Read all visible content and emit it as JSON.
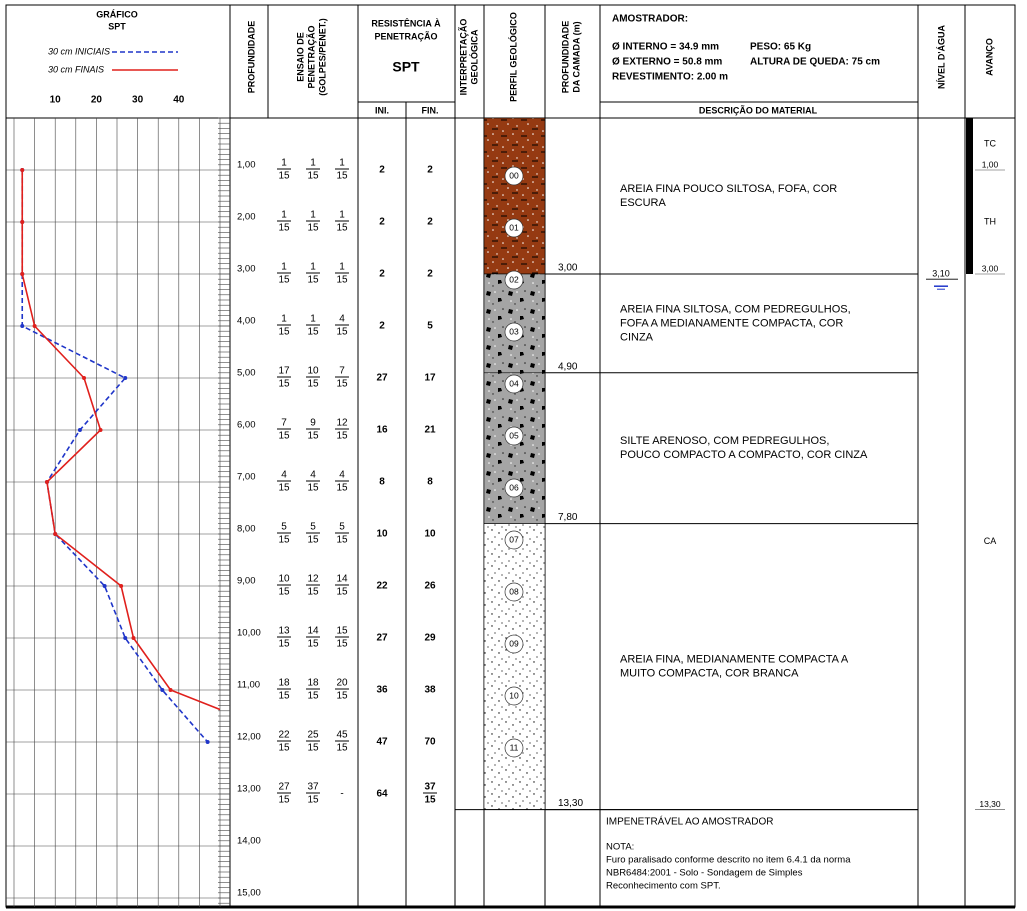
{
  "header": {
    "graph_title": [
      "GRÁFICO",
      "SPT"
    ],
    "depth": "PROFUNDIDADE",
    "penetration_test": [
      "ENSAIO DE",
      "PENETRAÇÃO",
      "(GOLPES/PENET.)"
    ],
    "resistance": [
      "RESISTÊNCIA À",
      "PENETRAÇÃO"
    ],
    "spt": "SPT",
    "ini": "INI.",
    "fin": "FIN.",
    "interpretation": [
      "INTERPRETAÇÃO",
      "GEOLÓGICA"
    ],
    "profile": "PERFIL GEOLÓGICO",
    "layer_depth": [
      "PROFUNDIDADE",
      "DA CAMADA (m)"
    ],
    "sampler_title": "AMOSTRADOR:",
    "sampler": [
      "Ø INTERNO = 34.9 mm",
      "PESO: 65 Kg",
      "Ø EXTERNO = 50.8 mm",
      "ALTURA DE QUEDA: 75 cm",
      "REVESTIMENTO: 2.00 m"
    ],
    "description": "DESCRIÇÃO DO MATERIAL",
    "water_level": "NÍVEL D'ÁGUA",
    "advance": "AVANÇO"
  },
  "graph": {
    "legend": [
      {
        "label": "30 cm INICIAIS",
        "color": "#1f35c9",
        "dashed": true
      },
      {
        "label": "30 cm FINAIS",
        "color": "#e0201c",
        "dashed": false
      }
    ],
    "xlim": [
      0,
      50
    ],
    "xticks": [
      10,
      20,
      30,
      40
    ]
  },
  "depth_labels": [
    "1,00",
    "2,00",
    "3,00",
    "4,00",
    "5,00",
    "6,00",
    "7,00",
    "8,00",
    "9,00",
    "10,00",
    "11,00",
    "12,00",
    "13,00",
    "14,00",
    "15,00"
  ],
  "rows": [
    {
      "blows": [
        [
          1,
          15
        ],
        [
          1,
          15
        ],
        [
          1,
          15
        ]
      ],
      "ini": 2,
      "fin": 2
    },
    {
      "blows": [
        [
          1,
          15
        ],
        [
          1,
          15
        ],
        [
          1,
          15
        ]
      ],
      "ini": 2,
      "fin": 2
    },
    {
      "blows": [
        [
          1,
          15
        ],
        [
          1,
          15
        ],
        [
          1,
          15
        ]
      ],
      "ini": 2,
      "fin": 2
    },
    {
      "blows": [
        [
          1,
          15
        ],
        [
          1,
          15
        ],
        [
          4,
          15
        ]
      ],
      "ini": 2,
      "fin": 5
    },
    {
      "blows": [
        [
          17,
          15
        ],
        [
          10,
          15
        ],
        [
          7,
          15
        ]
      ],
      "ini": 27,
      "fin": 17
    },
    {
      "blows": [
        [
          7,
          15
        ],
        [
          9,
          15
        ],
        [
          12,
          15
        ]
      ],
      "ini": 16,
      "fin": 21
    },
    {
      "blows": [
        [
          4,
          15
        ],
        [
          4,
          15
        ],
        [
          4,
          15
        ]
      ],
      "ini": 8,
      "fin": 8
    },
    {
      "blows": [
        [
          5,
          15
        ],
        [
          5,
          15
        ],
        [
          5,
          15
        ]
      ],
      "ini": 10,
      "fin": 10
    },
    {
      "blows": [
        [
          10,
          15
        ],
        [
          12,
          15
        ],
        [
          14,
          15
        ]
      ],
      "ini": 22,
      "fin": 26
    },
    {
      "blows": [
        [
          13,
          15
        ],
        [
          14,
          15
        ],
        [
          15,
          15
        ]
      ],
      "ini": 27,
      "fin": 29
    },
    {
      "blows": [
        [
          18,
          15
        ],
        [
          18,
          15
        ],
        [
          20,
          15
        ]
      ],
      "ini": 36,
      "fin": 38
    },
    {
      "blows": [
        [
          22,
          15
        ],
        [
          25,
          15
        ],
        [
          45,
          15
        ]
      ],
      "ini": 47,
      "fin": 70
    },
    {
      "blows": [
        [
          27,
          15
        ],
        [
          37,
          15
        ],
        "-"
      ],
      "ini": 64,
      "fin": [
        37,
        15
      ]
    }
  ],
  "samples": [
    "00",
    "01",
    "02",
    "03",
    "04",
    "05",
    "06",
    "07",
    "08",
    "09",
    "10",
    "11"
  ],
  "layers": [
    {
      "bottom": "3,00",
      "pattern": "brown",
      "description": [
        "AREIA FINA POUCO SILTOSA, FOFA, COR",
        "ESCURA"
      ]
    },
    {
      "bottom": "4,90",
      "pattern": "gravel",
      "description": [
        "AREIA FINA SILTOSA, COM PEDREGULHOS,",
        "FOFA A MEDIANAMENTE COMPACTA, COR",
        "CINZA"
      ]
    },
    {
      "bottom": "7,80",
      "pattern": "gravel",
      "description": [
        "SILTE ARENOSO, COM PEDREGULHOS,",
        "POUCO COMPACTO A COMPACTO, COR CINZA"
      ]
    },
    {
      "bottom": "13,30",
      "pattern": "sand",
      "description": [
        "AREIA FINA, MEDIANAMENTE COMPACTA A",
        "MUITO COMPACTA, COR BRANCA"
      ]
    }
  ],
  "water": {
    "level": "3,10"
  },
  "advance": [
    {
      "method": "TC",
      "bottom": "1,00"
    },
    {
      "method": "TH",
      "bottom": "3,00"
    },
    {
      "method": "CA",
      "bottom": "13,30"
    }
  ],
  "end": {
    "title": "IMPENETRÁVEL AO AMOSTRADOR",
    "note_title": "NOTA:",
    "note": [
      "Furo paralisado conforme descrito no item 6.4.1 da norma",
      "NBR6484:2001 - Solo - Sondagem de Simples",
      "Reconhecimento com SPT."
    ]
  }
}
